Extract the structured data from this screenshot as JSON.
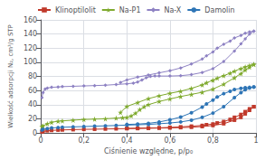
{
  "chart_data": {
    "type": "line",
    "xlabel": "Ciśnienie względne, p/p₀",
    "ylabel": "Wielkość adsorpcji N₂, cm³/g STP",
    "xlim": [
      0,
      1.0
    ],
    "ylim": [
      0,
      160
    ],
    "xticks": [
      0,
      {
        "value": 0.2,
        "label": "0,2"
      },
      {
        "value": 0.4,
        "label": "0,4"
      },
      {
        "value": 0.6,
        "label": "0,6"
      },
      {
        "value": 0.8,
        "label": "0,8"
      },
      1
    ],
    "yticks": [
      0,
      20,
      40,
      60,
      80,
      100,
      120,
      140,
      160
    ],
    "grid": true,
    "legend": "upper left",
    "series": [
      {
        "name": "Klinoptilolit",
        "color": "#c0392b",
        "marker": "square",
        "x": [
          0.005,
          0.01,
          0.03,
          0.05,
          0.08,
          0.1,
          0.15,
          0.2,
          0.25,
          0.3,
          0.35,
          0.4,
          0.45,
          0.5,
          0.55,
          0.6,
          0.65,
          0.7,
          0.75,
          0.8,
          0.85,
          0.9,
          0.93,
          0.95,
          0.97,
          0.99,
          0.99,
          0.97,
          0.95,
          0.93,
          0.9,
          0.88,
          0.85,
          0.82,
          0.8,
          0.77,
          0.75,
          0.7,
          0.65,
          0.6,
          0.55,
          0.5,
          0.45,
          0.4
        ],
        "values": [
          1.5,
          2.0,
          3.0,
          3.5,
          4.0,
          4.2,
          4.6,
          5.0,
          5.2,
          5.5,
          5.8,
          6.0,
          6.2,
          6.5,
          6.8,
          7.0,
          7.5,
          8.0,
          9.0,
          10.5,
          13.0,
          18.0,
          22.0,
          27.0,
          32.0,
          37.0,
          37.0,
          34.0,
          30.0,
          26.0,
          22.0,
          19.0,
          16.0,
          14.0,
          12.5,
          11.5,
          10.5,
          9.5,
          8.5,
          7.8,
          7.2,
          7.0,
          6.7,
          6.4
        ]
      },
      {
        "name": "Na-P1",
        "color": "#7faa2e",
        "marker": "star",
        "x": [
          0.005,
          0.01,
          0.03,
          0.05,
          0.08,
          0.1,
          0.15,
          0.2,
          0.25,
          0.3,
          0.35,
          0.38,
          0.4,
          0.42,
          0.44,
          0.46,
          0.48,
          0.5,
          0.55,
          0.6,
          0.65,
          0.7,
          0.75,
          0.8,
          0.85,
          0.9,
          0.93,
          0.95,
          0.97,
          0.99,
          0.99,
          0.97,
          0.95,
          0.93,
          0.9,
          0.88,
          0.85,
          0.82,
          0.8,
          0.77,
          0.75,
          0.7,
          0.65,
          0.6,
          0.55,
          0.5,
          0.45,
          0.4,
          0.37
        ],
        "values": [
          9.0,
          10.0,
          13.0,
          15.0,
          16.5,
          17.0,
          18.0,
          19.0,
          19.5,
          20.0,
          21.0,
          21.5,
          22.0,
          24.0,
          28.0,
          33.0,
          37.0,
          40.0,
          44.5,
          48.0,
          51.5,
          54.5,
          57.5,
          62.0,
          69.0,
          78.0,
          84.0,
          89.0,
          93.0,
          97.0,
          97.0,
          95.5,
          93.5,
          91.0,
          87.5,
          84.5,
          81.0,
          77.5,
          74.5,
          71.0,
          68.0,
          63.0,
          59.0,
          56.0,
          52.5,
          48.5,
          43.0,
          37.5,
          29.0
        ]
      },
      {
        "name": "Na-X",
        "color": "#8e82c3",
        "marker": "diamond",
        "x": [
          0.005,
          0.01,
          0.02,
          0.03,
          0.05,
          0.08,
          0.1,
          0.15,
          0.2,
          0.25,
          0.3,
          0.35,
          0.4,
          0.43,
          0.45,
          0.47,
          0.49,
          0.51,
          0.53,
          0.55,
          0.6,
          0.65,
          0.7,
          0.75,
          0.8,
          0.85,
          0.9,
          0.93,
          0.95,
          0.97,
          0.99,
          0.99,
          0.97,
          0.95,
          0.93,
          0.9,
          0.88,
          0.85,
          0.82,
          0.8,
          0.77,
          0.75,
          0.7,
          0.65,
          0.6,
          0.55,
          0.5,
          0.45,
          0.4,
          0.37
        ],
        "values": [
          50.0,
          57.0,
          62.0,
          63.5,
          64.5,
          65.0,
          65.5,
          66.0,
          66.5,
          67.0,
          67.5,
          68.5,
          69.5,
          70.5,
          72.0,
          75.0,
          78.0,
          80.0,
          80.5,
          80.5,
          80.5,
          81.0,
          82.5,
          85.5,
          91.0,
          101.0,
          116.0,
          126.0,
          133.0,
          140.0,
          144.0,
          144.0,
          143.0,
          141.0,
          138.0,
          134.5,
          130.0,
          125.5,
          120.0,
          114.5,
          109.0,
          104.5,
          97.5,
          92.0,
          88.0,
          85.0,
          82.0,
          79.0,
          75.0,
          71.5
        ]
      },
      {
        "name": "Damolin",
        "color": "#2e75b6",
        "marker": "circle",
        "x": [
          0.005,
          0.01,
          0.03,
          0.05,
          0.08,
          0.1,
          0.15,
          0.2,
          0.25,
          0.3,
          0.35,
          0.4,
          0.45,
          0.5,
          0.55,
          0.6,
          0.65,
          0.7,
          0.75,
          0.8,
          0.85,
          0.9,
          0.93,
          0.95,
          0.97,
          0.99,
          0.99,
          0.97,
          0.95,
          0.93,
          0.9,
          0.88,
          0.85,
          0.82,
          0.8,
          0.77,
          0.75,
          0.7,
          0.65,
          0.6,
          0.55,
          0.5,
          0.45,
          0.4
        ],
        "values": [
          4.0,
          5.0,
          6.0,
          7.0,
          7.5,
          8.0,
          8.5,
          9.0,
          9.5,
          10.0,
          10.5,
          11.0,
          11.5,
          12.0,
          13.0,
          14.0,
          15.5,
          18.0,
          22.0,
          28.0,
          37.0,
          50.0,
          57.0,
          61.0,
          63.5,
          65.0,
          65.0,
          64.5,
          64.0,
          63.0,
          61.5,
          59.0,
          55.5,
          51.0,
          46.5,
          41.0,
          36.5,
          28.5,
          22.5,
          18.5,
          15.5,
          13.5,
          12.5,
          12.0
        ]
      }
    ]
  }
}
